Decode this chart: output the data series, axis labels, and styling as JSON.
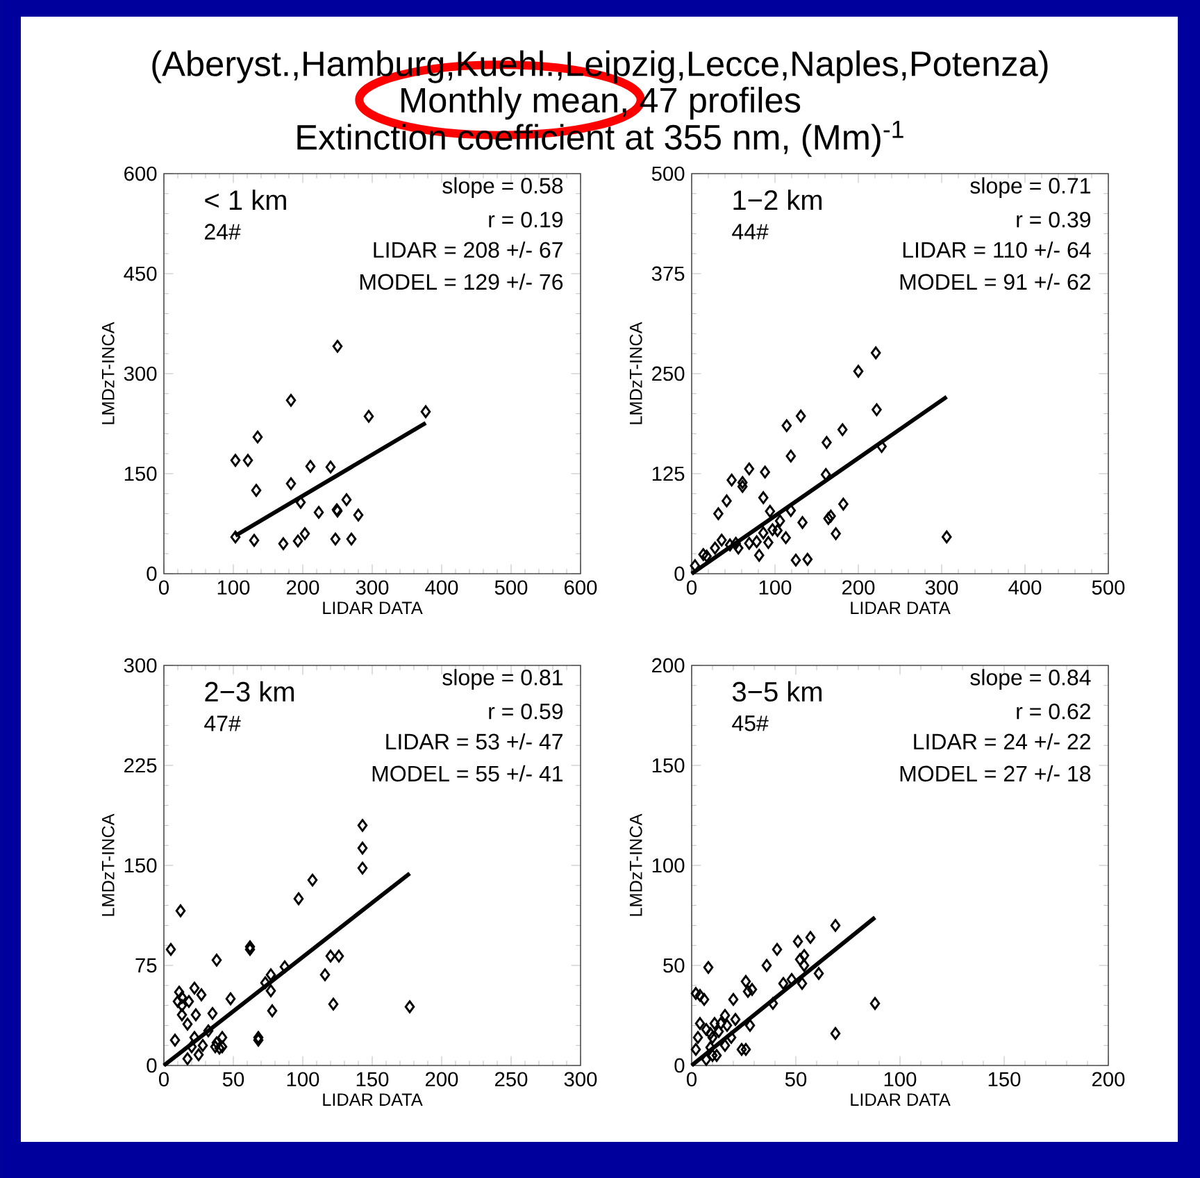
{
  "chart_data": [
    {
      "type": "scatter",
      "title": "(Aberyst.,Hamburg,Kuehl.,Leipzig,Lecce,Naples,Potenza)",
      "subtitle": "Monthly mean,  47 profiles",
      "xlabel": "LIDAR DATA",
      "ylabel": "LMDzT-INCA",
      "xlim": [
        0,
        600
      ],
      "ylim": [
        0,
        600
      ],
      "xticks": [
        0,
        100,
        200,
        300,
        400,
        500,
        600
      ],
      "yticks": [
        0,
        150,
        300,
        450,
        600
      ],
      "annotations": [
        "< 1 km",
        "24#",
        "slope = 0.58",
        "r = 0.19",
        "LIDAR = 208 +/- 67",
        "MODEL = 129 +/- 76",
        "Extinction coefficient at 355 nm, (Mm)$^{-1}$"
      ],
      "series": [
        {
          "marker": "diamond",
          "color": "#000000",
          "x": [
            103,
            103,
            121,
            135,
            133,
            130,
            183,
            183,
            172,
            193,
            203,
            197,
            211,
            223,
            240,
            250,
            250,
            249,
            247,
            263,
            270,
            280,
            295,
            377
          ],
          "values": [
            55,
            170,
            170,
            205,
            125,
            50,
            260,
            135,
            45,
            49,
            60,
            107,
            161,
            92,
            160,
            341,
            94,
            96,
            52,
            111,
            52,
            88,
            236,
            243
          ]
        },
        {
          "type": "line",
          "marker": "none",
          "color": "#000000",
          "x": [
            103,
            377
          ],
          "values": [
            57,
            226
          ]
        }
      ]
    },
    {
      "type": "scatter",
      "xlabel": "LIDAR DATA",
      "ylabel": "LMDzT-INCA",
      "xlim": [
        0,
        500
      ],
      "ylim": [
        0,
        500
      ],
      "xticks": [
        0,
        100,
        200,
        300,
        400,
        500
      ],
      "yticks": [
        0,
        125,
        250,
        375,
        500
      ],
      "annotations": [
        "1−2  km",
        "44#",
        "slope = 0.71",
        "r = 0.39",
        "LIDAR = 110 +/- 64",
        "MODEL = 91 +/- 62"
      ],
      "series": [
        {
          "marker": "diamond",
          "color": "#000000",
          "x": [
            4,
            18,
            28,
            36,
            32,
            42,
            48,
            61,
            69,
            61,
            88,
            86,
            53,
            56,
            69,
            78,
            81,
            86,
            94,
            97,
            106,
            113,
            119,
            114,
            131,
            119,
            125,
            139,
            133,
            162,
            181,
            161,
            164,
            167,
            173,
            182,
            200,
            221,
            222,
            228,
            306,
            92,
            103,
            14,
            46
          ],
          "values": [
            10,
            22,
            32,
            42,
            75,
            91,
            117,
            114,
            131,
            109,
            127,
            95,
            38,
            32,
            38,
            40,
            23,
            51,
            78,
            55,
            66,
            45,
            79,
            185,
            197,
            147,
            17,
            18,
            64,
            164,
            180,
            124,
            69,
            72,
            50,
            87,
            253,
            276,
            205,
            159,
            46,
            39,
            54,
            24,
            36
          ]
        },
        {
          "type": "line",
          "marker": "none",
          "color": "#000000",
          "x": [
            0,
            306
          ],
          "values": [
            0,
            221
          ]
        }
      ]
    },
    {
      "type": "scatter",
      "xlabel": "LIDAR DATA",
      "ylabel": "LMDzT-INCA",
      "xlim": [
        0,
        300
      ],
      "ylim": [
        0,
        300
      ],
      "xticks": [
        0,
        50,
        100,
        150,
        200,
        250,
        300
      ],
      "yticks": [
        0,
        75,
        150,
        225,
        300
      ],
      "annotations": [
        "2−3  km",
        "47#",
        "slope = 0.81",
        "r = 0.59",
        "LIDAR = 53 +/- 47",
        "MODEL = 55 +/- 41"
      ],
      "series": [
        {
          "marker": "diamond",
          "color": "#000000",
          "x": [
            5,
            12,
            11,
            10,
            13,
            17,
            18,
            22,
            27,
            23,
            22,
            17,
            25,
            20,
            35,
            38,
            37,
            38,
            42,
            40,
            48,
            62,
            62,
            68,
            68,
            73,
            77,
            77,
            78,
            87,
            97,
            107,
            116,
            120,
            126,
            122,
            143,
            143,
            143,
            177,
            13,
            32,
            28,
            13,
            8,
            42
          ],
          "values": [
            87,
            116,
            55,
            48,
            38,
            31,
            48,
            58,
            53,
            38,
            21,
            5,
            8,
            14,
            39,
            79,
            14,
            17,
            21,
            13,
            50,
            89,
            87,
            21,
            19,
            62,
            68,
            56,
            41,
            74,
            125,
            139,
            68,
            82,
            82,
            46,
            180,
            163,
            148,
            44,
            51,
            26,
            15,
            45,
            19,
            14
          ]
        },
        {
          "type": "line",
          "marker": "none",
          "color": "#000000",
          "x": [
            0,
            177
          ],
          "values": [
            0,
            144
          ]
        }
      ]
    },
    {
      "type": "scatter",
      "xlabel": "LIDAR DATA",
      "ylabel": "LMDzT-INCA",
      "xlim": [
        0,
        200
      ],
      "ylim": [
        0,
        200
      ],
      "xticks": [
        0,
        50,
        100,
        150,
        200
      ],
      "yticks": [
        0,
        50,
        100,
        150,
        200
      ],
      "annotations": [
        "3−5  km",
        "45#",
        "slope = 0.84",
        "r = 0.62",
        "LIDAR = 24 +/- 22",
        "MODEL = 27 +/- 18"
      ],
      "series": [
        {
          "marker": "diamond",
          "color": "#000000",
          "x": [
            2,
            4,
            6,
            8,
            3,
            2,
            7,
            9,
            11,
            9,
            12,
            10,
            13,
            14,
            10,
            7,
            17,
            20,
            24,
            26,
            26,
            27,
            29,
            28,
            36,
            39,
            41,
            48,
            51,
            52,
            54,
            53,
            57,
            61,
            69,
            69,
            88,
            4,
            16,
            19,
            44,
            54,
            21,
            16
          ],
          "values": [
            36,
            35,
            33,
            49,
            14,
            8,
            18,
            16,
            21,
            9,
            5,
            14,
            17,
            21,
            5,
            3,
            20,
            33,
            8,
            8,
            42,
            37,
            38,
            20,
            50,
            31,
            58,
            43,
            62,
            53,
            55,
            41,
            64,
            46,
            70,
            16,
            31,
            21,
            10,
            14,
            41,
            50,
            23,
            25
          ]
        },
        {
          "type": "line",
          "marker": "none",
          "color": "#000000",
          "x": [
            0,
            88
          ],
          "values": [
            0,
            74
          ]
        }
      ]
    }
  ]
}
